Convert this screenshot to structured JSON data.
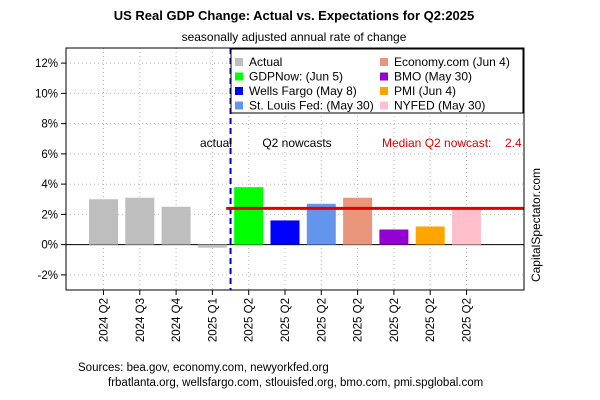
{
  "chart_data": {
    "type": "bar",
    "title": "US Real GDP Change: Actual vs. Expectations for Q2:2025",
    "subtitle": "seasonally adjusted annual rate of change",
    "ylabel": "",
    "ylim": [
      -3,
      13
    ],
    "yticks": [
      -2,
      0,
      2,
      4,
      6,
      8,
      10,
      12
    ],
    "ytick_labels": [
      "-2%",
      "0%",
      "2%",
      "4%",
      "6%",
      "8%",
      "10%",
      "12%"
    ],
    "grid": true,
    "legend_position": "top-right",
    "categories": [
      "2024 Q2",
      "2024 Q3",
      "2024 Q4",
      "2025 Q1",
      "2025 Q2",
      "2025 Q2",
      "2025 Q2",
      "2025 Q2",
      "2025 Q2",
      "2025 Q2",
      "2025 Q2"
    ],
    "bars": [
      {
        "category": "2024 Q2",
        "value": 3.0,
        "series": "Actual",
        "color": "#bebebe"
      },
      {
        "category": "2024 Q3",
        "value": 3.1,
        "series": "Actual",
        "color": "#bebebe"
      },
      {
        "category": "2024 Q4",
        "value": 2.5,
        "series": "Actual",
        "color": "#bebebe"
      },
      {
        "category": "2025 Q1",
        "value": -0.2,
        "series": "Actual",
        "color": "#bebebe"
      },
      {
        "category": "2025 Q2",
        "value": 3.8,
        "series": "GDPNow: (Jun 5)",
        "color": "#00ff00"
      },
      {
        "category": "2025 Q2",
        "value": 1.6,
        "series": "Wells Fargo (May 8)",
        "color": "#0000ff"
      },
      {
        "category": "2025 Q2",
        "value": 2.7,
        "series": "St. Louis Fed: (May 30)",
        "color": "#6495ed"
      },
      {
        "category": "2025 Q2",
        "value": 3.1,
        "series": "Economy.com (Jun 4)",
        "color": "#e9967a"
      },
      {
        "category": "2025 Q2",
        "value": 1.0,
        "series": "BMO (May 30)",
        "color": "#9400d3"
      },
      {
        "category": "2025 Q2",
        "value": 1.2,
        "series": "PMI (Jun 4)",
        "color": "#ffa500"
      },
      {
        "category": "2025 Q2",
        "value": 2.4,
        "series": "NYFED (May 30)",
        "color": "#ffc0cb"
      }
    ],
    "legend": [
      {
        "label": "Actual",
        "color": "#bebebe"
      },
      {
        "label": "GDPNow: (Jun 5)",
        "color": "#00ff00"
      },
      {
        "label": "Wells Fargo (May 8)",
        "color": "#0000ff"
      },
      {
        "label": "St. Louis Fed: (May 30)",
        "color": "#6495ed"
      },
      {
        "label": "Economy.com (Jun 4)",
        "color": "#e9967a"
      },
      {
        "label": "BMO (May 30)",
        "color": "#9400d3"
      },
      {
        "label": "PMI (Jun 4)",
        "color": "#ffa500"
      },
      {
        "label": "NYFED (May 30)",
        "color": "#ffc0cb"
      }
    ],
    "median": {
      "value": 2.4,
      "label": "Median Q2 nowcast:",
      "value_label": "2.4",
      "color": "#e00000"
    },
    "annotations": {
      "actual": "actual",
      "nowcasts": "Q2 nowcasts",
      "divider_color": "#0000cd"
    },
    "side_label": "CapitalSpectator.com",
    "sources": [
      "Sources: bea.gov, economy.com, newyorkfed.org",
      "frbatlanta.org, wellsfargo.com, stlouisfed.org, bmo.com, pmi.spglobal.com"
    ]
  }
}
